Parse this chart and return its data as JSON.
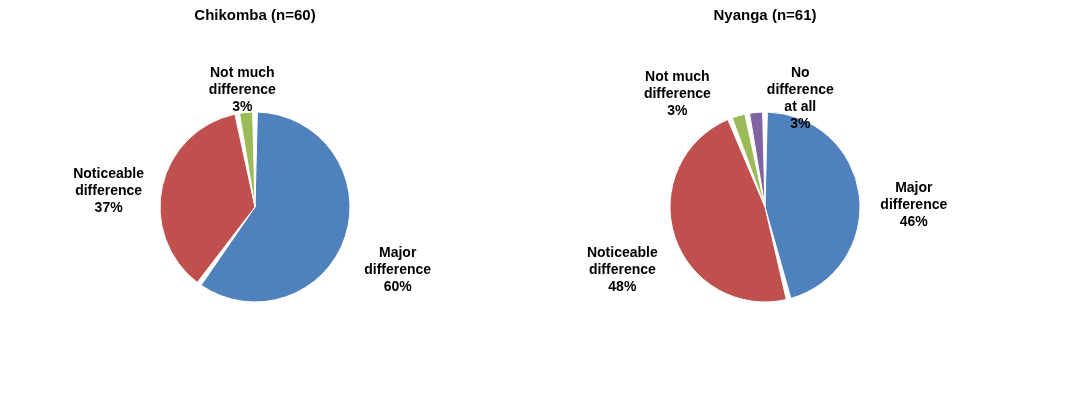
{
  "chart_data": [
    {
      "type": "pie",
      "title": "Chikomba (n=60)",
      "categories": [
        "Major difference",
        "Noticeable difference",
        "Not much difference"
      ],
      "values": [
        60,
        37,
        3
      ],
      "value_labels": [
        "60%",
        "37%",
        "3%"
      ],
      "colors": [
        "#4f81bd",
        "#c0504d",
        "#9bbb59"
      ],
      "legend": false
    },
    {
      "type": "pie",
      "title": "Nyanga (n=61)",
      "categories": [
        "Major difference",
        "Noticeable difference",
        "Not much difference",
        "No difference at all"
      ],
      "values": [
        46,
        48,
        3,
        3
      ],
      "value_labels": [
        "46%",
        "48%",
        "3%",
        "3%"
      ],
      "colors": [
        "#4f81bd",
        "#c0504d",
        "#9bbb59",
        "#8064a2"
      ],
      "legend": false
    }
  ]
}
